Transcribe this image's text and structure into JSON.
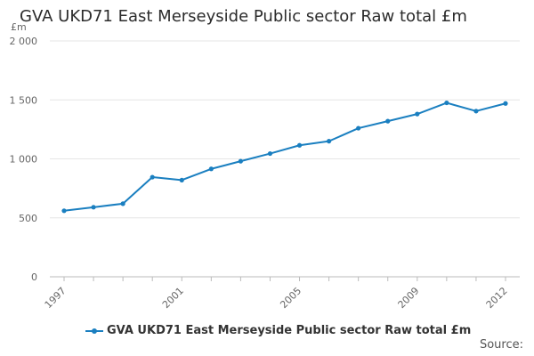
{
  "chart_data": {
    "type": "line",
    "title": "GVA UKD71 East Merseyside Public sector Raw total £m",
    "ylabel": "£m",
    "xlabel": "",
    "ylim": [
      0,
      2000
    ],
    "y_ticks": [
      0,
      500,
      1000,
      1500,
      2000
    ],
    "y_tick_labels": [
      "0",
      "500",
      "1 000",
      "1 500",
      "2 000"
    ],
    "x_tick_labels": [
      "1997",
      "2001",
      "2005",
      "2009",
      "2012"
    ],
    "x": [
      1997,
      1998,
      1999,
      2000,
      2001,
      2002,
      2003,
      2004,
      2005,
      2006,
      2007,
      2008,
      2009,
      2010,
      2011,
      2012
    ],
    "series": [
      {
        "name": "GVA UKD71 East Merseyside Public sector Raw total £m",
        "color": "#1a7fc0",
        "values": [
          560,
          590,
          620,
          845,
          820,
          915,
          980,
          1045,
          1115,
          1150,
          1260,
          1320,
          1380,
          1475,
          1405,
          1470
        ]
      }
    ],
    "grid": "horizontal",
    "legend_position": "bottom"
  },
  "source_label": "Source:"
}
